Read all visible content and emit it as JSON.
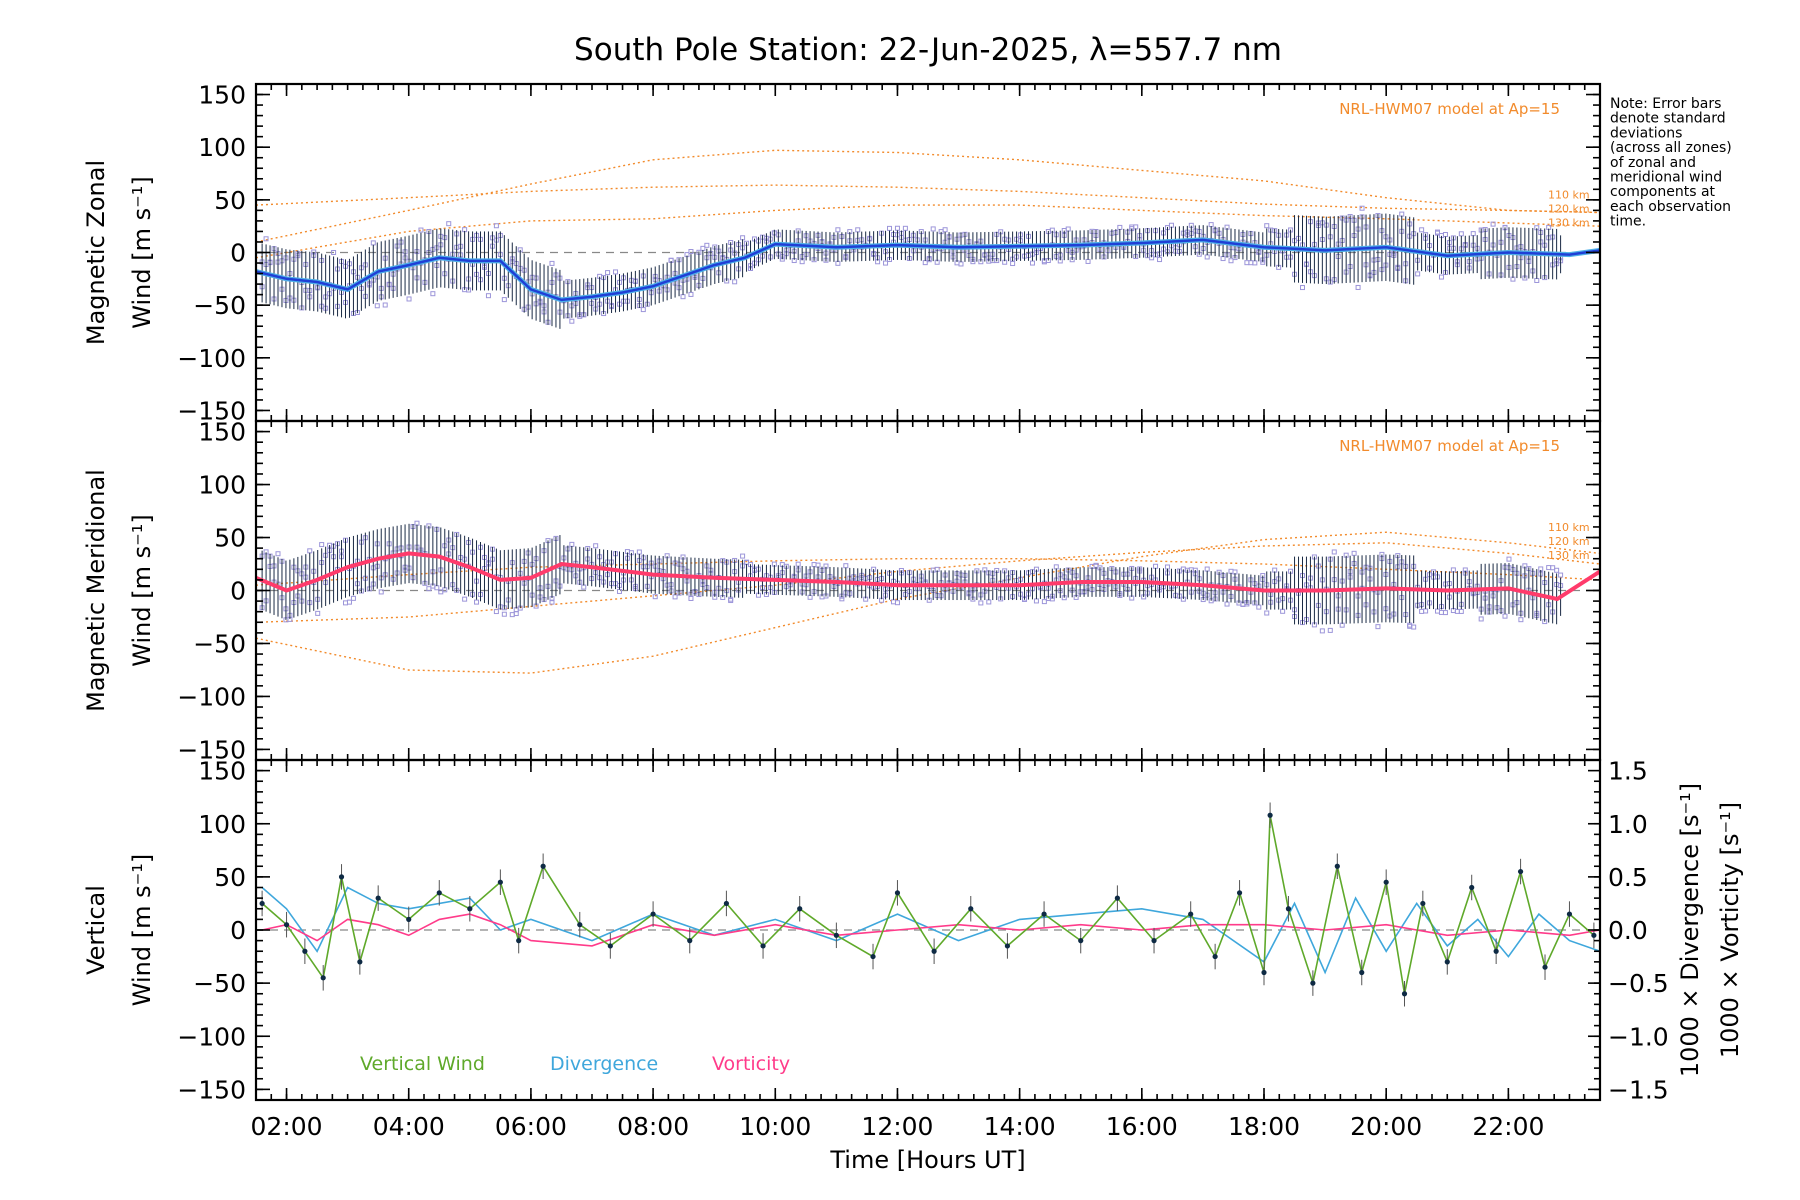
{
  "colors": {
    "zonal_mean": "#1f3fd6",
    "zonal_mean_light": "#4fb0e8",
    "meridional_mean": "#ff3b6b",
    "model": "#f28b2c",
    "zone_points": "#9c95d9",
    "errorbar": "#1a2a44",
    "vertical": "#5fa92a",
    "divergence": "#3fa7dc",
    "vorticity": "#ff3b8a",
    "zero_line": "#888888"
  },
  "chart_data": {
    "type": "line",
    "title": "South Pole Station: 22-Jun-2025, λ=557.7 nm",
    "xlabel": "Time [Hours UT]",
    "xlim": [
      1.5,
      23.5
    ],
    "x_ticks": [
      "02:00",
      "04:00",
      "06:00",
      "08:00",
      "10:00",
      "12:00",
      "14:00",
      "16:00",
      "18:00",
      "20:00",
      "22:00"
    ],
    "note": [
      "Note: Error bars",
      "denote standard",
      "deviations",
      "(across all zones)",
      "of zonal and",
      "meridional wind",
      "components at",
      "each observation",
      "time."
    ],
    "panels": [
      {
        "name": "zonal",
        "ylabel": [
          "Magnetic Zonal",
          "Wind [m s⁻¹]"
        ],
        "ylim": [
          -160,
          160
        ],
        "y_ticks": [
          "150",
          "100",
          "50",
          "0",
          "−50",
          "−100",
          "−150"
        ],
        "model_label": "NRL-HWM07 model at Ap=15",
        "altitude_labels": [
          "110 km",
          "120 km",
          "130 km"
        ],
        "series": [
          {
            "name": "Mean zonal wind",
            "x": [
              1.5,
              2.0,
              2.5,
              3.0,
              3.5,
              4.0,
              4.5,
              5.0,
              5.5,
              6.0,
              6.5,
              7.0,
              7.5,
              8.0,
              8.5,
              9.0,
              9.5,
              10.0,
              11.0,
              12.0,
              13.0,
              14.0,
              15.0,
              16.0,
              17.0,
              18.0,
              19.0,
              20.0,
              21.0,
              22.0,
              23.0,
              23.5
            ],
            "y": [
              -18,
              -25,
              -28,
              -35,
              -18,
              -12,
              -5,
              -8,
              -8,
              -35,
              -45,
              -42,
              -38,
              -32,
              -22,
              -12,
              -5,
              8,
              5,
              7,
              5,
              6,
              7,
              9,
              12,
              5,
              2,
              5,
              -3,
              0,
              -2,
              2
            ]
          }
        ],
        "models": [
          {
            "name": "110 km",
            "x": [
              1.5,
              4.0,
              6.0,
              8.0,
              10.0,
              12.0,
              14.0,
              16.0,
              18.0,
              20.0,
              22.0,
              23.5
            ],
            "y": [
              45,
              52,
              58,
              62,
              64,
              62,
              58,
              52,
              46,
              42,
              40,
              38
            ]
          },
          {
            "name": "120 km",
            "x": [
              1.5,
              4.0,
              6.0,
              8.0,
              10.0,
              12.0,
              14.0,
              16.0,
              18.0,
              20.0,
              22.0,
              23.5
            ],
            "y": [
              10,
              40,
              65,
              88,
              97,
              95,
              88,
              78,
              68,
              52,
              40,
              38
            ]
          },
          {
            "name": "130 km",
            "x": [
              1.5,
              4.0,
              6.0,
              8.0,
              10.0,
              12.0,
              14.0,
              16.0,
              18.0,
              20.0,
              22.0,
              23.5
            ],
            "y": [
              -5,
              20,
              30,
              32,
              40,
              45,
              45,
              40,
              35,
              32,
              28,
              25
            ]
          }
        ]
      },
      {
        "name": "meridional",
        "ylabel": [
          "Magnetic Meridional",
          "Wind [m s⁻¹]"
        ],
        "ylim": [
          -160,
          160
        ],
        "y_ticks": [
          "150",
          "100",
          "50",
          "0",
          "−50",
          "−100",
          "−150"
        ],
        "model_label": "NRL-HWM07 model at Ap=15",
        "altitude_labels": [
          "110 km",
          "120 km",
          "130 km"
        ],
        "series": [
          {
            "name": "Mean meridional wind",
            "x": [
              1.5,
              2.0,
              2.5,
              3.0,
              3.5,
              4.0,
              4.5,
              5.0,
              5.5,
              6.0,
              6.5,
              7.0,
              8.0,
              9.0,
              10.0,
              11.0,
              12.0,
              13.0,
              14.0,
              15.0,
              16.0,
              17.0,
              18.0,
              19.0,
              20.0,
              21.0,
              22.0,
              22.8,
              23.5
            ],
            "y": [
              12,
              0,
              10,
              22,
              30,
              35,
              32,
              22,
              10,
              12,
              25,
              22,
              15,
              12,
              10,
              8,
              5,
              5,
              5,
              8,
              8,
              5,
              0,
              0,
              2,
              0,
              2,
              -8,
              18
            ]
          }
        ],
        "models": [
          {
            "name": "110 km",
            "x": [
              1.5,
              4.0,
              6.0,
              8.0,
              10.0,
              12.0,
              14.0,
              16.0,
              18.0,
              20.0,
              22.0,
              23.5
            ],
            "y": [
              -45,
              -75,
              -78,
              -62,
              -35,
              -8,
              12,
              32,
              48,
              55,
              45,
              35
            ]
          },
          {
            "name": "120 km",
            "x": [
              1.5,
              4.0,
              6.0,
              8.0,
              10.0,
              12.0,
              14.0,
              16.0,
              18.0,
              20.0,
              22.0,
              23.5
            ],
            "y": [
              -30,
              -25,
              -15,
              -5,
              5,
              18,
              28,
              36,
              42,
              45,
              35,
              25
            ]
          },
          {
            "name": "130 km",
            "x": [
              1.5,
              4.0,
              6.0,
              8.0,
              10.0,
              12.0,
              14.0,
              16.0,
              18.0,
              20.0,
              22.0,
              23.5
            ],
            "y": [
              5,
              15,
              22,
              25,
              28,
              30,
              30,
              28,
              25,
              20,
              15,
              10
            ]
          }
        ]
      },
      {
        "name": "vertical",
        "ylabel": [
          "Vertical",
          "Wind [m s⁻¹]"
        ],
        "ylim": [
          -160,
          160
        ],
        "y_ticks": [
          "150",
          "100",
          "50",
          "0",
          "−50",
          "−100",
          "−150"
        ],
        "right_ylim": [
          -1.6,
          1.6
        ],
        "right_ticks": [
          "1.5",
          "1.0",
          "0.5",
          "0.0",
          "−0.5",
          "−1.0",
          "−1.5"
        ],
        "right_labels": [
          "1000 × Divergence [s⁻¹]",
          "1000 × Vorticity [s⁻¹]"
        ],
        "legend": [
          "Vertical Wind",
          "Divergence",
          "Vorticity"
        ],
        "series": [
          {
            "name": "Vertical Wind",
            "x": [
              1.6,
              2.0,
              2.3,
              2.6,
              2.9,
              3.2,
              3.5,
              4.0,
              4.5,
              5.0,
              5.5,
              5.8,
              6.2,
              6.8,
              7.3,
              8.0,
              8.6,
              9.2,
              9.8,
              10.4,
              11.0,
              11.6,
              12.0,
              12.6,
              13.2,
              13.8,
              14.4,
              15.0,
              15.6,
              16.2,
              16.8,
              17.2,
              17.6,
              18.0,
              18.1,
              18.4,
              18.8,
              19.2,
              19.6,
              20.0,
              20.3,
              20.6,
              21.0,
              21.4,
              21.8,
              22.2,
              22.6,
              23.0,
              23.4
            ],
            "y": [
              25,
              5,
              -20,
              -45,
              50,
              -30,
              30,
              10,
              35,
              20,
              45,
              -10,
              60,
              5,
              -15,
              15,
              -10,
              25,
              -15,
              20,
              -5,
              -25,
              35,
              -20,
              20,
              -15,
              15,
              -10,
              30,
              -10,
              15,
              -25,
              35,
              -40,
              108,
              20,
              -50,
              60,
              -40,
              45,
              -60,
              25,
              -30,
              40,
              -20,
              55,
              -35,
              15,
              -5
            ]
          },
          {
            "name": "Divergence",
            "x": [
              1.6,
              2.0,
              2.5,
              3.0,
              3.5,
              4.0,
              5.0,
              5.5,
              6.0,
              7.0,
              8.0,
              9.0,
              10.0,
              11.0,
              12.0,
              13.0,
              14.0,
              15.0,
              16.0,
              17.0,
              18.0,
              18.5,
              19.0,
              19.5,
              20.0,
              20.5,
              21.0,
              21.5,
              22.0,
              22.5,
              23.0,
              23.5
            ],
            "y": [
              0.4,
              0.2,
              -0.2,
              0.4,
              0.25,
              0.2,
              0.3,
              0.0,
              0.1,
              -0.1,
              0.15,
              -0.05,
              0.1,
              -0.1,
              0.15,
              -0.1,
              0.1,
              0.15,
              0.2,
              0.1,
              -0.3,
              0.25,
              -0.4,
              0.3,
              -0.2,
              0.25,
              -0.15,
              0.1,
              -0.25,
              0.15,
              -0.1,
              -0.2
            ]
          },
          {
            "name": "Vorticity",
            "x": [
              1.6,
              2.0,
              2.5,
              3.0,
              3.5,
              4.0,
              4.5,
              5.0,
              5.5,
              6.0,
              7.0,
              8.0,
              9.0,
              10.0,
              11.0,
              12.0,
              13.0,
              14.0,
              15.0,
              16.0,
              17.0,
              18.0,
              19.0,
              20.0,
              21.0,
              22.0,
              23.0,
              23.5
            ],
            "y": [
              0.0,
              0.05,
              -0.1,
              0.1,
              0.05,
              -0.05,
              0.1,
              0.15,
              0.05,
              -0.1,
              -0.15,
              0.05,
              -0.05,
              0.05,
              -0.05,
              0.0,
              0.05,
              0.0,
              0.05,
              0.0,
              0.05,
              0.05,
              0.0,
              0.05,
              -0.05,
              0.0,
              -0.05,
              0.0
            ]
          }
        ]
      }
    ]
  }
}
